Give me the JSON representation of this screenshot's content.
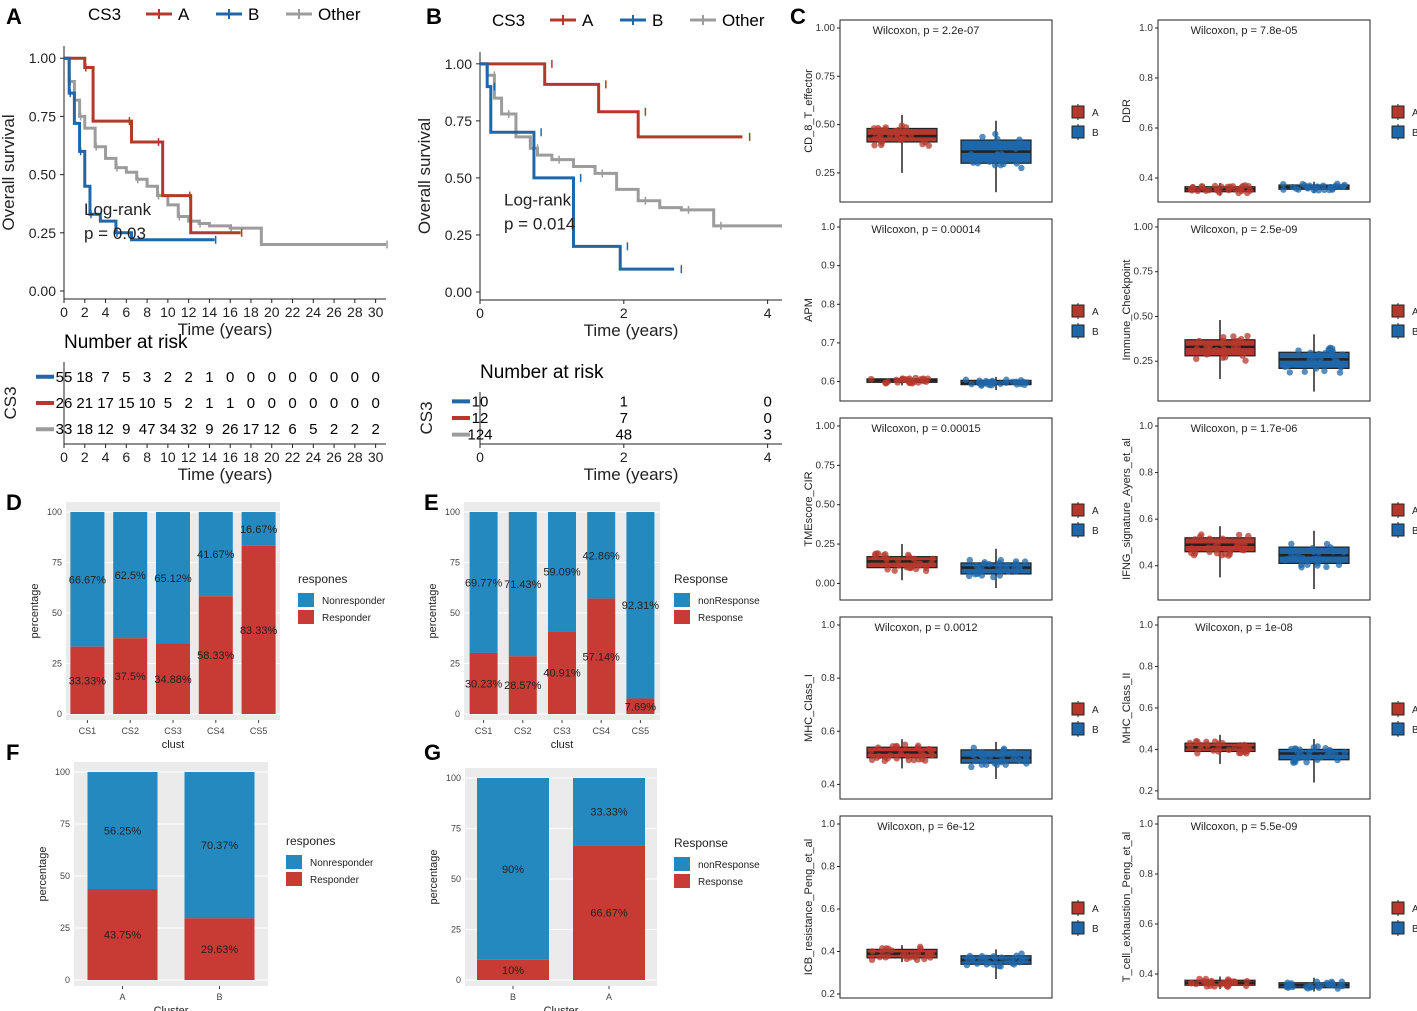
{
  "colors": {
    "A": "#b5382c",
    "B": "#1f67a9",
    "Other": "#9c9c9c",
    "responder": "#c83a34",
    "nonresponder": "#2489bf",
    "panelbg": "#ebebeb",
    "grid": "#ffffff"
  },
  "chart_data": {
    "km": [
      {
        "panel": "A",
        "title": "CS3",
        "legend": [
          "A",
          "B",
          "Other"
        ],
        "xticks": [
          "0",
          "2",
          "4",
          "6",
          "8",
          "10",
          "12",
          "14",
          "16",
          "18",
          "20",
          "22",
          "24",
          "26",
          "28",
          "30"
        ],
        "xmax": 31,
        "yticks": [
          "0.00",
          "0.25",
          "0.50",
          "0.75",
          "1.00"
        ],
        "xlabel": "Time (years)",
        "ylabel": "Overall survival",
        "logrank": "Log-rank",
        "pvalue": "p = 0.03",
        "series": {
          "A": [
            [
              0,
              1
            ],
            [
              2,
              0.96
            ],
            [
              2.8,
              0.73
            ],
            [
              6.2,
              0.73
            ],
            [
              6.5,
              0.64
            ],
            [
              9,
              0.64
            ],
            [
              9.5,
              0.41
            ],
            [
              12,
              0.41
            ],
            [
              12.2,
              0.25
            ],
            [
              17,
              0.25
            ]
          ],
          "B": [
            [
              0,
              1
            ],
            [
              0.5,
              0.85
            ],
            [
              1,
              0.72
            ],
            [
              1.5,
              0.6
            ],
            [
              2,
              0.45
            ],
            [
              2.5,
              0.33
            ],
            [
              3.5,
              0.3
            ],
            [
              5,
              0.25
            ],
            [
              6.5,
              0.22
            ],
            [
              14.5,
              0.22
            ]
          ],
          "Other": [
            [
              0,
              1
            ],
            [
              0.5,
              0.9
            ],
            [
              1,
              0.82
            ],
            [
              1.5,
              0.75
            ],
            [
              2,
              0.7
            ],
            [
              3,
              0.62
            ],
            [
              4,
              0.57
            ],
            [
              5,
              0.53
            ],
            [
              6,
              0.51
            ],
            [
              7,
              0.48
            ],
            [
              8,
              0.45
            ],
            [
              9,
              0.41
            ],
            [
              10,
              0.37
            ],
            [
              11,
              0.32
            ],
            [
              12,
              0.3
            ],
            [
              13,
              0.29
            ],
            [
              14,
              0.28
            ],
            [
              16,
              0.27
            ],
            [
              19,
              0.2
            ],
            [
              31,
              0.2
            ]
          ]
        },
        "risk_title": "Number at risk",
        "risk_ylabel": "CS3",
        "risk": [
          [
            "55",
            "18",
            "7",
            "5",
            "3",
            "2",
            "2",
            "1",
            "0",
            "0",
            "0",
            "0",
            "0",
            "0",
            "0",
            "0"
          ],
          [
            "26",
            "21",
            "17",
            "15",
            "10",
            "5",
            "2",
            "1",
            "1",
            "0",
            "0",
            "0",
            "0",
            "0",
            "0",
            "0"
          ],
          [
            "33",
            "18",
            "12",
            "9",
            "47",
            "34",
            "32",
            "9",
            "26",
            "17",
            "12",
            "6",
            "5",
            "2",
            "2",
            "2"
          ]
        ]
      },
      {
        "panel": "B",
        "title": "CS3",
        "legend": [
          "A",
          "B",
          "Other"
        ],
        "xticks": [
          "0",
          "2",
          "4"
        ],
        "xmax": 4.2,
        "yticks": [
          "0.00",
          "0.25",
          "0.50",
          "0.75",
          "1.00"
        ],
        "xlabel": "Time (years)",
        "ylabel": "Overall survival",
        "logrank": "Log-rank",
        "pvalue": "p = 0.014",
        "series": {
          "A": [
            [
              0,
              1
            ],
            [
              0.9,
              1
            ],
            [
              0.9,
              0.91
            ],
            [
              1.65,
              0.91
            ],
            [
              1.65,
              0.79
            ],
            [
              2.2,
              0.79
            ],
            [
              2.2,
              0.68
            ],
            [
              3.65,
              0.68
            ]
          ],
          "B": [
            [
              0,
              1
            ],
            [
              0.1,
              0.9
            ],
            [
              0.15,
              0.7
            ],
            [
              0.75,
              0.7
            ],
            [
              0.75,
              0.5
            ],
            [
              1.3,
              0.5
            ],
            [
              1.3,
              0.2
            ],
            [
              1.95,
              0.2
            ],
            [
              1.95,
              0.1
            ],
            [
              2.7,
              0.1
            ]
          ],
          "Other": [
            [
              0,
              1
            ],
            [
              0.1,
              0.95
            ],
            [
              0.2,
              0.85
            ],
            [
              0.3,
              0.78
            ],
            [
              0.5,
              0.68
            ],
            [
              0.7,
              0.63
            ],
            [
              0.8,
              0.6
            ],
            [
              1,
              0.58
            ],
            [
              1.3,
              0.55
            ],
            [
              1.6,
              0.52
            ],
            [
              1.9,
              0.45
            ],
            [
              2.2,
              0.4
            ],
            [
              2.5,
              0.37
            ],
            [
              2.8,
              0.36
            ],
            [
              3.25,
              0.36
            ],
            [
              3.25,
              0.29
            ],
            [
              4.2,
              0.29
            ]
          ]
        },
        "risk_title": "Number at risk",
        "risk_ylabel": "CS3",
        "risk": [
          [
            "10",
            "1",
            "0"
          ],
          [
            "12",
            "7",
            "0"
          ],
          [
            "124",
            "48",
            "3"
          ]
        ]
      }
    ],
    "stacked": [
      {
        "panel": "D",
        "categories": [
          "CS1",
          "CS2",
          "CS3",
          "CS4",
          "CS5"
        ],
        "responder": [
          33.33,
          37.5,
          34.88,
          58.33,
          83.33
        ],
        "labels_top": [
          "66.67%",
          "62.5%",
          "65.12%",
          "41.67%",
          "16.67%"
        ],
        "labels_bot": [
          "33.33%",
          "37.5%",
          "34.88%",
          "58.33%",
          "83.33%"
        ],
        "xlabel": "clust",
        "ylabel": "percentage",
        "legend_title": "respones",
        "legend": [
          "Nonresponder",
          "Responder"
        ],
        "yticks": [
          "0",
          "25",
          "50",
          "75",
          "100"
        ]
      },
      {
        "panel": "E",
        "categories": [
          "CS1",
          "CS2",
          "CS3",
          "CS4",
          "CS5"
        ],
        "responder": [
          30.23,
          28.57,
          40.91,
          57.14,
          7.69
        ],
        "labels_top": [
          "69.77%",
          "71.43%",
          "59.09%",
          "42.86%",
          "92.31%"
        ],
        "labels_bot": [
          "30.23%",
          "28.57%",
          "40.91%",
          "57.14%",
          "7.69%"
        ],
        "xlabel": "clust",
        "ylabel": "percentage",
        "legend_title": "Response",
        "legend": [
          "nonResponse",
          "Response"
        ],
        "yticks": [
          "0",
          "25",
          "50",
          "75",
          "100"
        ]
      },
      {
        "panel": "F",
        "categories": [
          "A",
          "B"
        ],
        "responder": [
          43.75,
          29.63
        ],
        "labels_top": [
          "56.25%",
          "70.37%"
        ],
        "labels_bot": [
          "43.75%",
          "29.63%"
        ],
        "xlabel": "Cluster",
        "ylabel": "percentage",
        "legend_title": "respones",
        "legend": [
          "Nonresponder",
          "Responder"
        ],
        "yticks": [
          "0",
          "25",
          "50",
          "75",
          "100"
        ]
      },
      {
        "panel": "G",
        "categories": [
          "B",
          "A"
        ],
        "responder": [
          10,
          66.67
        ],
        "labels_top": [
          "90%",
          "33.33%"
        ],
        "labels_bot": [
          "10%",
          "66.67%"
        ],
        "xlabel": "Cluster",
        "ylabel": "percentage",
        "legend_title": "Response",
        "legend": [
          "nonResponse",
          "Response"
        ],
        "yticks": [
          "0",
          "25",
          "50",
          "75",
          "100"
        ]
      }
    ],
    "boxes": [
      {
        "label": "CD_8_T_effector",
        "stat": "Wilcoxon, p = 2.2e-07",
        "yticks": [
          "0.25",
          "0.50",
          "0.75",
          "1.00"
        ],
        "yrange": [
          0.12,
          1.0
        ],
        "A": {
          "q1": 0.41,
          "med": 0.44,
          "q3": 0.48,
          "lo": 0.25,
          "hi": 0.55
        },
        "B": {
          "q1": 0.3,
          "med": 0.36,
          "q3": 0.42,
          "lo": 0.15,
          "hi": 0.52
        }
      },
      {
        "label": "DDR",
        "stat": "Wilcoxon, p = 7.8e-05",
        "yticks": [
          "0.4",
          "0.6",
          "0.8",
          "1.0"
        ],
        "yrange": [
          0.32,
          1.0
        ],
        "A": {
          "q1": 0.345,
          "med": 0.355,
          "q3": 0.365,
          "lo": 0.33,
          "hi": 0.38
        },
        "B": {
          "q1": 0.355,
          "med": 0.363,
          "q3": 0.372,
          "lo": 0.34,
          "hi": 0.385
        }
      },
      {
        "label": "APM",
        "stat": "Wilcoxon, p = 0.00014",
        "yticks": [
          "0.6",
          "0.7",
          "0.8",
          "0.9",
          "1.0"
        ],
        "yrange": [
          0.56,
          1.0
        ],
        "A": {
          "q1": 0.598,
          "med": 0.603,
          "q3": 0.607,
          "lo": 0.59,
          "hi": 0.615
        },
        "B": {
          "q1": 0.592,
          "med": 0.597,
          "q3": 0.603,
          "lo": 0.578,
          "hi": 0.612
        }
      },
      {
        "label": "Immune_Checkpoint",
        "stat": "Wilcoxon, p = 2.5e-09",
        "yticks": [
          "0.25",
          "0.50",
          "0.75",
          "1.00"
        ],
        "yrange": [
          0.05,
          1.0
        ],
        "A": {
          "q1": 0.28,
          "med": 0.33,
          "q3": 0.37,
          "lo": 0.15,
          "hi": 0.48
        },
        "B": {
          "q1": 0.21,
          "med": 0.26,
          "q3": 0.3,
          "lo": 0.08,
          "hi": 0.4
        }
      },
      {
        "label": "TMEscore_CIR",
        "stat": "Wilcoxon, p = 0.00015",
        "yticks": [
          "0.00",
          "0.25",
          "0.50",
          "0.75",
          "1.00"
        ],
        "yrange": [
          -0.08,
          1.0
        ],
        "A": {
          "q1": 0.1,
          "med": 0.14,
          "q3": 0.17,
          "lo": 0.02,
          "hi": 0.25
        },
        "B": {
          "q1": 0.06,
          "med": 0.1,
          "q3": 0.13,
          "lo": -0.03,
          "hi": 0.22
        }
      },
      {
        "label": "IFNG_signature_Ayers_et_al",
        "stat": "Wilcoxon, p = 1.7e-06",
        "yticks": [
          "0.4",
          "0.6",
          "0.8",
          "1.0"
        ],
        "yrange": [
          0.27,
          1.0
        ],
        "A": {
          "q1": 0.46,
          "med": 0.49,
          "q3": 0.52,
          "lo": 0.35,
          "hi": 0.57
        },
        "B": {
          "q1": 0.41,
          "med": 0.445,
          "q3": 0.48,
          "lo": 0.3,
          "hi": 0.55
        }
      },
      {
        "label": "MHC_Class_I",
        "stat": "Wilcoxon, p = 0.0012",
        "yticks": [
          "0.4",
          "0.6",
          "0.8",
          "1.0"
        ],
        "yrange": [
          0.36,
          1.0
        ],
        "A": {
          "q1": 0.5,
          "med": 0.52,
          "q3": 0.54,
          "lo": 0.46,
          "hi": 0.57
        },
        "B": {
          "q1": 0.48,
          "med": 0.5,
          "q3": 0.53,
          "lo": 0.42,
          "hi": 0.56
        }
      },
      {
        "label": "MHC_Class_II",
        "stat": "Wilcoxon, p = 1e-08",
        "yticks": [
          "0.2",
          "0.4",
          "0.6",
          "0.8",
          "1.0"
        ],
        "yrange": [
          0.18,
          1.0
        ],
        "A": {
          "q1": 0.39,
          "med": 0.41,
          "q3": 0.43,
          "lo": 0.33,
          "hi": 0.47
        },
        "B": {
          "q1": 0.35,
          "med": 0.38,
          "q3": 0.4,
          "lo": 0.24,
          "hi": 0.45
        }
      },
      {
        "label": "ICB_resistance_Peng_et_al",
        "stat": "Wilcoxon, p = 6e-12",
        "yticks": [
          "0.2",
          "0.4",
          "0.6",
          "0.8",
          "1.0"
        ],
        "yrange": [
          0.2,
          1.0
        ],
        "A": {
          "q1": 0.37,
          "med": 0.39,
          "q3": 0.41,
          "lo": 0.35,
          "hi": 0.43
        },
        "B": {
          "q1": 0.34,
          "med": 0.36,
          "q3": 0.38,
          "lo": 0.27,
          "hi": 0.41
        }
      },
      {
        "label": "T_cell_exhaustion_Peng_et_al",
        "stat": "Wilcoxon, p = 5.5e-09",
        "yticks": [
          "0.4",
          "0.6",
          "0.8",
          "1.0"
        ],
        "yrange": [
          0.32,
          1.0
        ],
        "A": {
          "q1": 0.355,
          "med": 0.365,
          "q3": 0.375,
          "lo": 0.34,
          "hi": 0.39
        },
        "B": {
          "q1": 0.345,
          "med": 0.355,
          "q3": 0.365,
          "lo": 0.33,
          "hi": 0.385
        }
      }
    ],
    "box_legend": [
      "A",
      "B"
    ]
  },
  "panel_letters": [
    "A",
    "B",
    "C",
    "D",
    "E",
    "F",
    "G"
  ]
}
